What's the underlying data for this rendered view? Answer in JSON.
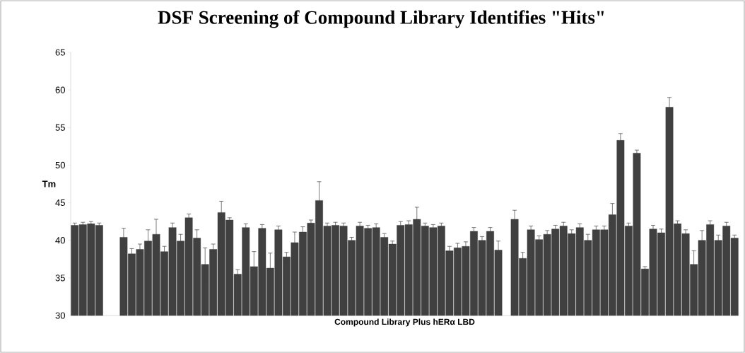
{
  "chart_data": {
    "type": "bar",
    "title": "DSF Screening of Compound Library Identifies \"Hits\"",
    "xlabel": "Compound Library Plus hERα LBD",
    "ylabel": "Tm",
    "categories": [
      null,
      null,
      null,
      null,
      null,
      null,
      null,
      null,
      null,
      null,
      null,
      null,
      null,
      null,
      null,
      null,
      null,
      null,
      null,
      null,
      null,
      null,
      null,
      null,
      null,
      null,
      null,
      null,
      null,
      null,
      null,
      null,
      null,
      null,
      null,
      null,
      null,
      null,
      null,
      null,
      null,
      null,
      null,
      null,
      null,
      null,
      null,
      null,
      null,
      null,
      null,
      null,
      null,
      null,
      null,
      null,
      null,
      null,
      null,
      null,
      null,
      null,
      null,
      null,
      null,
      null,
      null,
      null,
      null,
      null,
      null,
      null,
      null,
      null,
      null,
      null,
      null,
      null,
      null,
      null,
      null,
      null
    ],
    "values": [
      42.0,
      42.1,
      42.2,
      42.0,
      null,
      null,
      40.4,
      38.2,
      38.8,
      39.9,
      40.8,
      38.5,
      41.7,
      39.9,
      43.0,
      40.3,
      36.8,
      38.8,
      43.7,
      42.7,
      35.5,
      41.7,
      36.5,
      41.6,
      36.3,
      41.4,
      37.8,
      39.7,
      41.1,
      42.3,
      45.3,
      41.9,
      42.0,
      41.9,
      40.0,
      41.9,
      41.6,
      41.7,
      40.4,
      39.5,
      42.0,
      42.1,
      42.8,
      41.9,
      41.7,
      41.9,
      38.6,
      39.0,
      39.2,
      41.2,
      40.0,
      41.2,
      38.7,
      null,
      42.8,
      37.6,
      41.4,
      40.1,
      40.8,
      41.5,
      41.9,
      40.9,
      41.7,
      40.0,
      41.4,
      41.4,
      43.4,
      53.3,
      41.9,
      51.6,
      36.2,
      41.5,
      41.0,
      57.7,
      42.2,
      40.9,
      36.8,
      40.0,
      42.1,
      40.0,
      41.9,
      40.3
    ],
    "errors": [
      0.3,
      0.3,
      0.3,
      0.3,
      null,
      null,
      1.2,
      0.7,
      0.7,
      1.5,
      2.0,
      0.7,
      0.6,
      0.9,
      0.5,
      1.1,
      2.2,
      0.7,
      1.5,
      0.3,
      0.6,
      0.5,
      2.0,
      0.5,
      2.0,
      0.5,
      0.6,
      1.4,
      0.7,
      0.4,
      2.5,
      0.4,
      0.4,
      0.4,
      0.4,
      0.5,
      0.4,
      0.5,
      0.5,
      0.4,
      0.5,
      0.5,
      1.6,
      0.4,
      0.4,
      0.4,
      0.6,
      0.6,
      0.6,
      0.5,
      0.5,
      0.5,
      1.2,
      null,
      1.2,
      0.8,
      0.5,
      0.5,
      0.5,
      0.5,
      0.5,
      0.5,
      0.5,
      0.8,
      0.5,
      0.5,
      1.5,
      0.9,
      0.4,
      0.4,
      0.3,
      0.5,
      0.5,
      1.3,
      0.4,
      0.5,
      1.8,
      1.3,
      0.5,
      0.7,
      0.5,
      0.4
    ],
    "color": "#404040",
    "ylim": [
      30,
      65
    ],
    "yticks": [
      30,
      35,
      40,
      45,
      50,
      55,
      60,
      65
    ]
  }
}
